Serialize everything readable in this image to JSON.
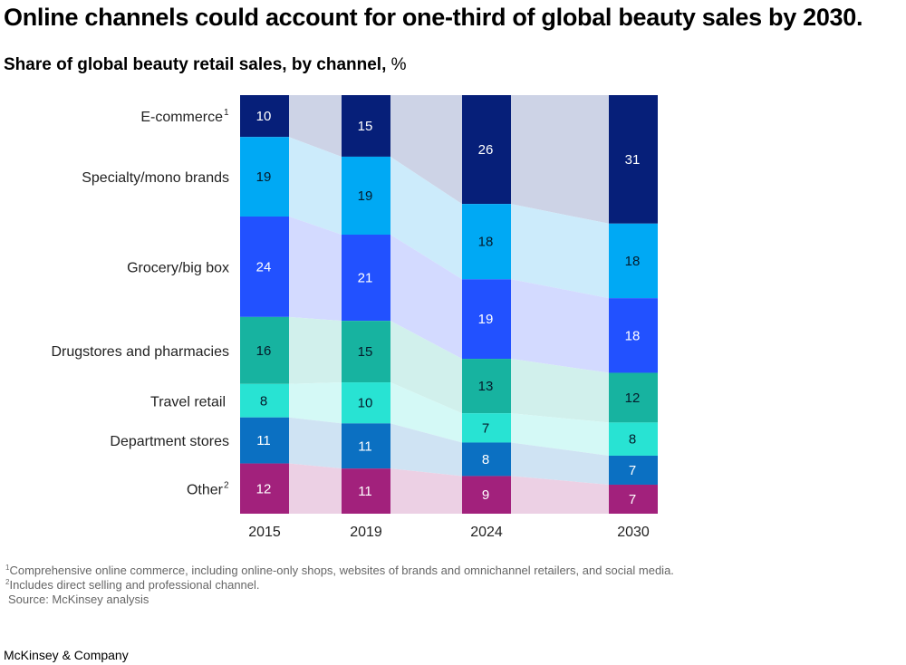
{
  "header": {
    "title": "Online channels could account for one-third of global beauty sales by 2030.",
    "subtitle_bold": "Share of global beauty retail sales, by channel,",
    "subtitle_unit": " %"
  },
  "chart_data": {
    "type": "bar",
    "stacked": true,
    "orientation": "vertical",
    "title": "Share of global beauty retail sales, by channel, %",
    "xlabel": "",
    "ylabel": "",
    "ylim": [
      0,
      100
    ],
    "grid": false,
    "legend": "left (category labels beside first bar)",
    "categories": [
      "2015",
      "2019",
      "2024",
      "2030"
    ],
    "series": [
      {
        "name": "E-commerce",
        "footnote": "1",
        "color": "#061f79",
        "band_color": "#cdd3e6",
        "text_color": "#ffffff",
        "values": [
          10,
          15,
          26,
          31
        ]
      },
      {
        "name": "Specialty/mono brands",
        "footnote": "",
        "color": "#00a9f4",
        "band_color": "#ccebfb",
        "text_color": "#051c2c",
        "values": [
          19,
          19,
          18,
          18
        ]
      },
      {
        "name": "Grocery/big box",
        "footnote": "",
        "color": "#2251ff",
        "band_color": "#d3daff",
        "text_color": "#ffffff",
        "values": [
          24,
          21,
          19,
          18
        ]
      },
      {
        "name": "Drugstores and pharmacies",
        "footnote": "",
        "color": "#17b3a0",
        "band_color": "#d1f0ec",
        "text_color": "#051c2c",
        "values": [
          16,
          15,
          13,
          12
        ]
      },
      {
        "name": "Travel retail",
        "footnote": "",
        "color": "#28e3d3",
        "band_color": "#d4f9f6",
        "text_color": "#051c2c",
        "values": [
          8,
          10,
          7,
          8
        ]
      },
      {
        "name": "Department stores",
        "footnote": "",
        "color": "#0b70c2",
        "band_color": "#cfe3f3",
        "text_color": "#ffffff",
        "values": [
          11,
          11,
          8,
          7
        ]
      },
      {
        "name": "Other",
        "footnote": "2",
        "color": "#a2217c",
        "band_color": "#ecd0e4",
        "text_color": "#ffffff",
        "values": [
          12,
          11,
          9,
          7
        ]
      }
    ]
  },
  "footnotes": [
    {
      "mark": "1",
      "text": "Comprehensive online commerce, including online-only shops, websites of brands and omnichannel retailers, and social media."
    },
    {
      "mark": "2",
      "text": "Includes direct selling and professional channel."
    }
  ],
  "source": "Source: McKinsey analysis",
  "brand": "McKinsey & Company"
}
